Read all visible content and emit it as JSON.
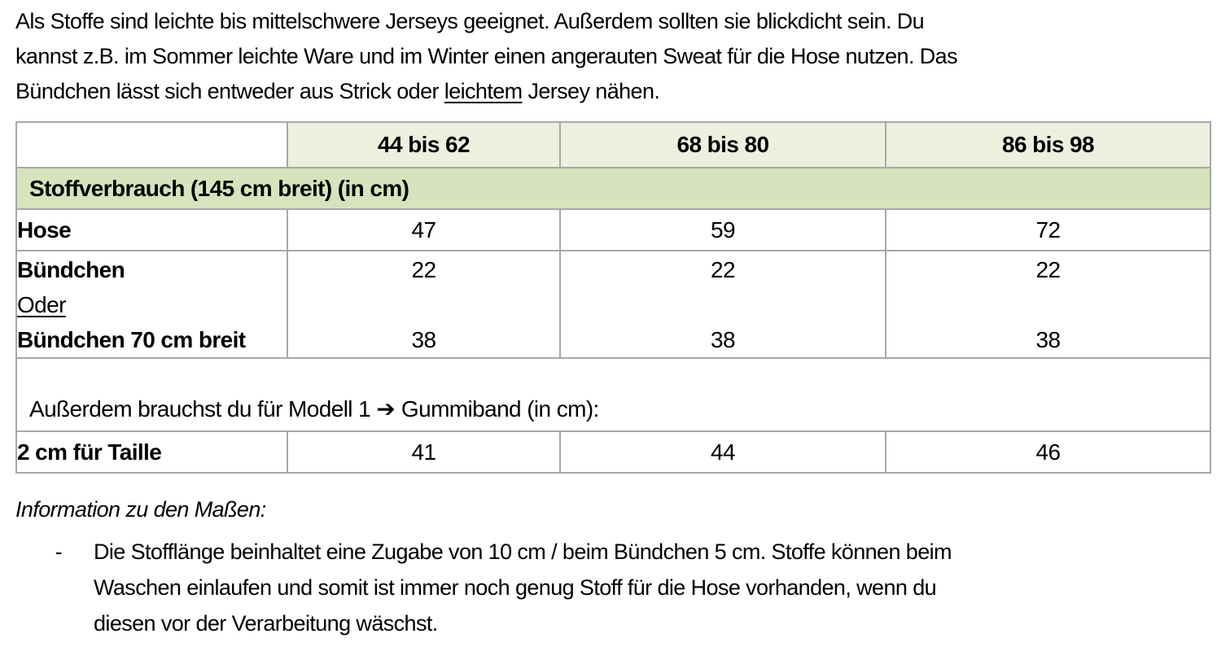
{
  "intro": {
    "line1": "Als Stoffe sind leichte bis mittelschwere Jerseys geeignet. Außerdem sollten sie blickdicht sein. Du",
    "line2": "kannst z.B. im Sommer leichte Ware und im Winter einen angerauten Sweat für die Hose nutzen. Das",
    "line3_pre": "Bündchen lässt sich entweder aus Strick oder ",
    "line3_underlined": "leichtem",
    "line3_post": " Jersey nähen."
  },
  "table": {
    "size_headers": [
      "44 bis 62",
      "68 bis 80",
      "86 bis 98"
    ],
    "section_header": "Stoffverbrauch (145 cm breit) (in cm)",
    "rows": {
      "hose": {
        "label": "Hose",
        "values": [
          "47",
          "59",
          "72"
        ]
      },
      "buendchen": {
        "label_line1": "Bündchen",
        "label_line2": "Oder",
        "label_line3": "Bündchen 70 cm breit",
        "values_line1": [
          "22",
          "22",
          "22"
        ],
        "values_line3": [
          "38",
          "38",
          "38"
        ]
      },
      "gummiband_note_pre": "Außerdem brauchst du für Modell 1 ",
      "gummiband_arrow": "➔",
      "gummiband_note_post": " Gummiband (in cm):",
      "taille": {
        "label": "2 cm für Taille",
        "values": [
          "41",
          "44",
          "46"
        ]
      }
    }
  },
  "info": {
    "title": "Information zu den Maßen:",
    "bullet_marker": "-",
    "bullet_line1": "Die Stofflänge beinhaltet eine Zugabe von 10 cm / beim Bündchen 5 cm. Stoffe können beim",
    "bullet_line2": "Waschen einlaufen und somit ist immer noch genug Stoff für die Hose vorhanden, wenn du",
    "bullet_line3": "diesen vor der Verarbeitung wäschst."
  },
  "colors": {
    "size_header_green": "#EBF1DE",
    "section_band_green": "#D6E3BC",
    "table_border_gray": "#A8A8A8",
    "text": "#000000"
  }
}
